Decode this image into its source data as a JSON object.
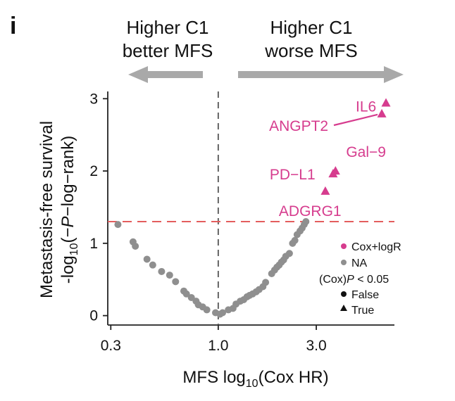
{
  "panel_letter": "i",
  "direction_labels": {
    "left": [
      "Higher C1",
      "better MFS"
    ],
    "right": [
      "Higher C1",
      "worse MFS"
    ]
  },
  "colors": {
    "significant": "#d63c8e",
    "na": "#8f8f8f",
    "threshold_line": "#e35d5d",
    "reference_line": "#555555",
    "arrow": "#a9a9a9"
  },
  "chart_data": {
    "type": "scatter",
    "xlabel": "MFS log10(Cox HR)",
    "ylabel": "Metastasis-free survival −log10(−P−log−rank)",
    "x_scale": "log",
    "xlim": [
      0.29,
      7.2
    ],
    "ylim": [
      -0.13,
      3.1
    ],
    "x_ticks": [
      {
        "value": 0.3,
        "label": "0.3"
      },
      {
        "value": 1.0,
        "label": "1.0"
      },
      {
        "value": 3.0,
        "label": "3.0"
      }
    ],
    "y_ticks": [
      {
        "value": 0,
        "label": "0"
      },
      {
        "value": 1,
        "label": "1"
      },
      {
        "value": 2,
        "label": "2"
      },
      {
        "value": 3,
        "label": "3"
      }
    ],
    "reference_x": 1.0,
    "threshold_y": 1.3,
    "legend": {
      "color_entries": [
        {
          "label": "Cox+logR",
          "color": "#d63c8e"
        },
        {
          "label": "NA",
          "color": "#8f8f8f"
        }
      ],
      "shape_title_prefix": "(Cox)",
      "shape_title_italic": "P",
      "shape_title_suffix": " < 0.05",
      "shape_entries": [
        {
          "label": "False",
          "shape": "circle"
        },
        {
          "label": "True",
          "shape": "triangle"
        }
      ]
    },
    "series": [
      {
        "name": "NA",
        "shape": "circle",
        "color": "#8f8f8f",
        "points": [
          {
            "x": 0.325,
            "y": 1.26
          },
          {
            "x": 0.385,
            "y": 1.02
          },
          {
            "x": 0.395,
            "y": 0.96
          },
          {
            "x": 0.45,
            "y": 0.78
          },
          {
            "x": 0.48,
            "y": 0.7
          },
          {
            "x": 0.53,
            "y": 0.61
          },
          {
            "x": 0.58,
            "y": 0.56
          },
          {
            "x": 0.62,
            "y": 0.47
          },
          {
            "x": 0.68,
            "y": 0.34
          },
          {
            "x": 0.7,
            "y": 0.3
          },
          {
            "x": 0.74,
            "y": 0.25
          },
          {
            "x": 0.78,
            "y": 0.2
          },
          {
            "x": 0.8,
            "y": 0.15
          },
          {
            "x": 0.84,
            "y": 0.12
          },
          {
            "x": 0.88,
            "y": 0.08
          },
          {
            "x": 0.97,
            "y": 0.04
          },
          {
            "x": 1.02,
            "y": 0.02
          },
          {
            "x": 1.05,
            "y": 0.04
          },
          {
            "x": 1.12,
            "y": 0.08
          },
          {
            "x": 1.18,
            "y": 0.1
          },
          {
            "x": 1.22,
            "y": 0.16
          },
          {
            "x": 1.28,
            "y": 0.2
          },
          {
            "x": 1.33,
            "y": 0.22
          },
          {
            "x": 1.38,
            "y": 0.26
          },
          {
            "x": 1.42,
            "y": 0.28
          },
          {
            "x": 1.47,
            "y": 0.3
          },
          {
            "x": 1.53,
            "y": 0.33
          },
          {
            "x": 1.58,
            "y": 0.36
          },
          {
            "x": 1.65,
            "y": 0.4
          },
          {
            "x": 1.7,
            "y": 0.46
          },
          {
            "x": 1.82,
            "y": 0.58
          },
          {
            "x": 1.88,
            "y": 0.63
          },
          {
            "x": 1.93,
            "y": 0.67
          },
          {
            "x": 1.98,
            "y": 0.7
          },
          {
            "x": 2.03,
            "y": 0.74
          },
          {
            "x": 2.08,
            "y": 0.77
          },
          {
            "x": 2.13,
            "y": 0.82
          },
          {
            "x": 2.22,
            "y": 0.86
          },
          {
            "x": 2.3,
            "y": 1.0
          },
          {
            "x": 2.36,
            "y": 1.04
          },
          {
            "x": 2.42,
            "y": 1.12
          },
          {
            "x": 2.5,
            "y": 1.17
          },
          {
            "x": 2.56,
            "y": 1.21
          },
          {
            "x": 2.62,
            "y": 1.26
          },
          {
            "x": 2.67,
            "y": 1.3
          }
        ]
      },
      {
        "name": "Cox+logR",
        "shape": "triangle",
        "color": "#d63c8e",
        "points": [
          {
            "x": 6.55,
            "y": 2.94,
            "label": "IL6"
          },
          {
            "x": 6.25,
            "y": 2.79,
            "label": "ANGPT2"
          },
          {
            "x": 3.72,
            "y": 2.0,
            "label": "Gal−9"
          },
          {
            "x": 3.62,
            "y": 1.96,
            "label": "PD−L1"
          },
          {
            "x": 3.32,
            "y": 1.72,
            "label": "ADGRG1"
          }
        ]
      }
    ]
  }
}
